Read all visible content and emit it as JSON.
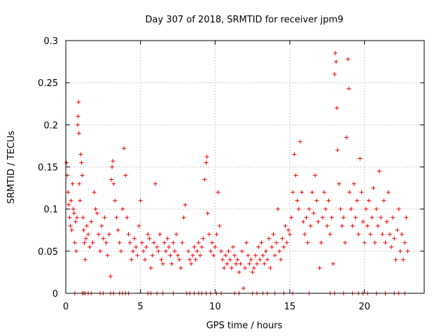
{
  "chart_data": {
    "type": "scatter",
    "title": "Day 307 of 2018, SRMTID for receiver jpm9",
    "xlabel": "GPS time / hours",
    "ylabel": "SRMTID / TECUs",
    "xlim": [
      0,
      24
    ],
    "ylim": [
      0,
      0.3
    ],
    "x_ticks": [
      0,
      5,
      10,
      15,
      20
    ],
    "x_tick_labels": [
      "0",
      "5",
      "10",
      "15",
      "20"
    ],
    "y_ticks": [
      0,
      0.05,
      0.1,
      0.15,
      0.2,
      0.25,
      0.3
    ],
    "y_tick_labels": [
      "0",
      "0.05",
      "0.1",
      "0.15",
      "0.2",
      "0.25",
      "0.3"
    ],
    "grid": true,
    "marker": "plus",
    "color": "#ee0000",
    "series": [
      {
        "name": "SRMTID",
        "points": [
          [
            0.05,
            0.155
          ],
          [
            0.1,
            0.14
          ],
          [
            0.15,
            0.12
          ],
          [
            0.2,
            0.105
          ],
          [
            0.25,
            0.09
          ],
          [
            0.3,
            0.08
          ],
          [
            0.35,
            0.11
          ],
          [
            0.4,
            0.075
          ],
          [
            0.45,
            0.13
          ],
          [
            0.5,
            0.1
          ],
          [
            0.55,
            0.095
          ],
          [
            0.6,
            0.06
          ],
          [
            0.65,
            0.085
          ],
          [
            0.7,
            0.05
          ],
          [
            0.75,
            0.09
          ],
          [
            0.8,
            0.2
          ],
          [
            0.82,
            0.21
          ],
          [
            0.85,
            0.227
          ],
          [
            0.88,
            0.19
          ],
          [
            0.9,
            0.13
          ],
          [
            0.95,
            0.11
          ],
          [
            1.0,
            0.165
          ],
          [
            1.05,
            0.155
          ],
          [
            1.1,
            0.14
          ],
          [
            1.15,
            0.09
          ],
          [
            1.2,
            0.075
          ],
          [
            1.25,
            0.06
          ],
          [
            1.3,
            0.04
          ],
          [
            1.35,
            0.065
          ],
          [
            1.4,
            0.08
          ],
          [
            1.5,
            0.07
          ],
          [
            1.6,
            0.055
          ],
          [
            1.7,
            0.085
          ],
          [
            1.8,
            0.06
          ],
          [
            1.9,
            0.12
          ],
          [
            2.0,
            0.1
          ],
          [
            2.1,
            0.095
          ],
          [
            2.2,
            0.07
          ],
          [
            2.3,
            0.05
          ],
          [
            2.4,
            0.08
          ],
          [
            2.5,
            0.065
          ],
          [
            2.6,
            0.09
          ],
          [
            2.7,
            0.06
          ],
          [
            2.8,
            0.045
          ],
          [
            2.9,
            0.07
          ],
          [
            3.0,
            0.02
          ],
          [
            3.05,
            0.135
          ],
          [
            3.1,
            0.15
          ],
          [
            3.15,
            0.157
          ],
          [
            3.2,
            0.13
          ],
          [
            3.3,
            0.11
          ],
          [
            3.4,
            0.09
          ],
          [
            3.5,
            0.075
          ],
          [
            3.6,
            0.06
          ],
          [
            3.7,
            0.05
          ],
          [
            3.8,
            0.1
          ],
          [
            3.9,
            0.172
          ],
          [
            4.0,
            0.14
          ],
          [
            4.1,
            0.09
          ],
          [
            4.2,
            0.07
          ],
          [
            4.3,
            0.06
          ],
          [
            4.4,
            0.04
          ],
          [
            4.5,
            0.05
          ],
          [
            4.6,
            0.065
          ],
          [
            4.7,
            0.055
          ],
          [
            4.8,
            0.045
          ],
          [
            4.9,
            0.08
          ],
          [
            5.0,
            0.11
          ],
          [
            5.1,
            0.06
          ],
          [
            5.2,
            0.05
          ],
          [
            5.3,
            0.04
          ],
          [
            5.4,
            0.055
          ],
          [
            5.5,
            0.07
          ],
          [
            5.6,
            0.065
          ],
          [
            5.7,
            0.03
          ],
          [
            5.8,
            0.045
          ],
          [
            5.9,
            0.06
          ],
          [
            6.0,
            0.13
          ],
          [
            6.1,
            0.055
          ],
          [
            6.2,
            0.05
          ],
          [
            6.3,
            0.07
          ],
          [
            6.4,
            0.04
          ],
          [
            6.5,
            0.035
          ],
          [
            6.6,
            0.06
          ],
          [
            6.7,
            0.05
          ],
          [
            6.8,
            0.065
          ],
          [
            6.9,
            0.055
          ],
          [
            7.0,
            0.045
          ],
          [
            7.1,
            0.035
          ],
          [
            7.2,
            0.06
          ],
          [
            7.3,
            0.05
          ],
          [
            7.4,
            0.07
          ],
          [
            7.5,
            0.045
          ],
          [
            7.6,
            0.04
          ],
          [
            7.7,
            0.03
          ],
          [
            7.8,
            0.06
          ],
          [
            7.9,
            0.09
          ],
          [
            8.0,
            0.105
          ],
          [
            8.2,
            0.05
          ],
          [
            8.3,
            0.04
          ],
          [
            8.4,
            0.035
          ],
          [
            8.5,
            0.045
          ],
          [
            8.6,
            0.055
          ],
          [
            8.7,
            0.04
          ],
          [
            8.8,
            0.05
          ],
          [
            8.9,
            0.06
          ],
          [
            9.0,
            0.045
          ],
          [
            9.1,
            0.055
          ],
          [
            9.2,
            0.065
          ],
          [
            9.3,
            0.135
          ],
          [
            9.4,
            0.155
          ],
          [
            9.45,
            0.162
          ],
          [
            9.5,
            0.095
          ],
          [
            9.6,
            0.07
          ],
          [
            9.7,
            0.05
          ],
          [
            9.8,
            0.06
          ],
          [
            9.9,
            0.045
          ],
          [
            10.0,
            0.055
          ],
          [
            10.1,
            0.07
          ],
          [
            10.2,
            0.12
          ],
          [
            10.3,
            0.08
          ],
          [
            10.4,
            0.05
          ],
          [
            10.5,
            0.04
          ],
          [
            10.6,
            0.03
          ],
          [
            10.7,
            0.045
          ],
          [
            10.8,
            0.035
          ],
          [
            10.9,
            0.05
          ],
          [
            11.0,
            0.04
          ],
          [
            11.1,
            0.03
          ],
          [
            11.2,
            0.055
          ],
          [
            11.3,
            0.045
          ],
          [
            11.4,
            0.035
          ],
          [
            11.5,
            0.04
          ],
          [
            11.6,
            0.025
          ],
          [
            11.7,
            0.035
          ],
          [
            11.8,
            0.05
          ],
          [
            11.9,
            0.006
          ],
          [
            12.0,
            0.03
          ],
          [
            12.1,
            0.06
          ],
          [
            12.2,
            0.045
          ],
          [
            12.3,
            0.035
          ],
          [
            12.4,
            0.04
          ],
          [
            12.5,
            0.025
          ],
          [
            12.6,
            0.03
          ],
          [
            12.7,
            0.045
          ],
          [
            12.8,
            0.035
          ],
          [
            12.9,
            0.055
          ],
          [
            13.0,
            0.04
          ],
          [
            13.1,
            0.06
          ],
          [
            13.2,
            0.045
          ],
          [
            13.3,
            0.035
          ],
          [
            13.4,
            0.05
          ],
          [
            13.5,
            0.04
          ],
          [
            13.6,
            0.065
          ],
          [
            13.7,
            0.03
          ],
          [
            13.8,
            0.055
          ],
          [
            13.9,
            0.07
          ],
          [
            14.0,
            0.045
          ],
          [
            14.1,
            0.06
          ],
          [
            14.2,
            0.1
          ],
          [
            14.3,
            0.05
          ],
          [
            14.4,
            0.04
          ],
          [
            14.5,
            0.065
          ],
          [
            14.6,
            0.055
          ],
          [
            14.7,
            0.08
          ],
          [
            14.8,
            0.06
          ],
          [
            14.9,
            0.075
          ],
          [
            15.0,
            0.07
          ],
          [
            15.1,
            0.09
          ],
          [
            15.2,
            0.12
          ],
          [
            15.3,
            0.165
          ],
          [
            15.4,
            0.14
          ],
          [
            15.5,
            0.11
          ],
          [
            15.6,
            0.1
          ],
          [
            15.7,
            0.18
          ],
          [
            15.8,
            0.12
          ],
          [
            15.9,
            0.085
          ],
          [
            16.0,
            0.07
          ],
          [
            16.1,
            0.09
          ],
          [
            16.2,
            0.06
          ],
          [
            16.3,
            0.1
          ],
          [
            16.4,
            0.08
          ],
          [
            16.5,
            0.12
          ],
          [
            16.6,
            0.095
          ],
          [
            16.7,
            0.14
          ],
          [
            16.8,
            0.11
          ],
          [
            16.9,
            0.085
          ],
          [
            17.0,
            0.03
          ],
          [
            17.1,
            0.06
          ],
          [
            17.2,
            0.09
          ],
          [
            17.3,
            0.12
          ],
          [
            17.4,
            0.1
          ],
          [
            17.5,
            0.08
          ],
          [
            17.6,
            0.11
          ],
          [
            17.7,
            0.07
          ],
          [
            17.8,
            0.09
          ],
          [
            17.9,
            0.035
          ],
          [
            18.0,
            0.26
          ],
          [
            18.05,
            0.285
          ],
          [
            18.1,
            0.275
          ],
          [
            18.15,
            0.22
          ],
          [
            18.2,
            0.17
          ],
          [
            18.3,
            0.13
          ],
          [
            18.4,
            0.1
          ],
          [
            18.5,
            0.08
          ],
          [
            18.6,
            0.09
          ],
          [
            18.7,
            0.06
          ],
          [
            18.8,
            0.185
          ],
          [
            18.9,
            0.278
          ],
          [
            18.95,
            0.243
          ],
          [
            19.0,
            0.12
          ],
          [
            19.1,
            0.1
          ],
          [
            19.2,
            0.08
          ],
          [
            19.3,
            0.13
          ],
          [
            19.4,
            0.09
          ],
          [
            19.5,
            0.11
          ],
          [
            19.6,
            0.07
          ],
          [
            19.7,
            0.16
          ],
          [
            19.8,
            0.12
          ],
          [
            19.9,
            0.085
          ],
          [
            20.0,
            0.06
          ],
          [
            20.1,
            0.1
          ],
          [
            20.2,
            0.08
          ],
          [
            20.3,
            0.11
          ],
          [
            20.4,
            0.07
          ],
          [
            20.5,
            0.09
          ],
          [
            20.6,
            0.125
          ],
          [
            20.7,
            0.06
          ],
          [
            20.8,
            0.1
          ],
          [
            20.9,
            0.08
          ],
          [
            21.0,
            0.145
          ],
          [
            21.1,
            0.09
          ],
          [
            21.2,
            0.07
          ],
          [
            21.3,
            0.11
          ],
          [
            21.4,
            0.06
          ],
          [
            21.5,
            0.085
          ],
          [
            21.6,
            0.12
          ],
          [
            21.7,
            0.07
          ],
          [
            21.8,
            0.055
          ],
          [
            21.9,
            0.09
          ],
          [
            22.0,
            0.065
          ],
          [
            22.1,
            0.04
          ],
          [
            22.2,
            0.075
          ],
          [
            22.3,
            0.1
          ],
          [
            22.4,
            0.05
          ],
          [
            22.5,
            0.07
          ],
          [
            22.6,
            0.04
          ],
          [
            22.7,
            0.06
          ],
          [
            22.8,
            0.09
          ],
          [
            22.9,
            0.05
          ]
        ],
        "zero_band_x": [
          0.6,
          1.1,
          1.2,
          1.3,
          1.5,
          1.7,
          2.3,
          2.5,
          3.0,
          3.2,
          3.6,
          3.8,
          4.0,
          4.2,
          5.5,
          5.7,
          6.1,
          6.5,
          7.2,
          8.1,
          8.3,
          8.6,
          8.9,
          9.1,
          9.4,
          9.7,
          10.1,
          10.4,
          11.3,
          11.6,
          12.5,
          12.8,
          13.2,
          13.5,
          14.0,
          14.6,
          15.2,
          16.3,
          17.7,
          18.0,
          18.6,
          19.2,
          19.6,
          19.9,
          20.2,
          20.8,
          21.4,
          22.0,
          22.3,
          22.7
        ]
      }
    ]
  }
}
